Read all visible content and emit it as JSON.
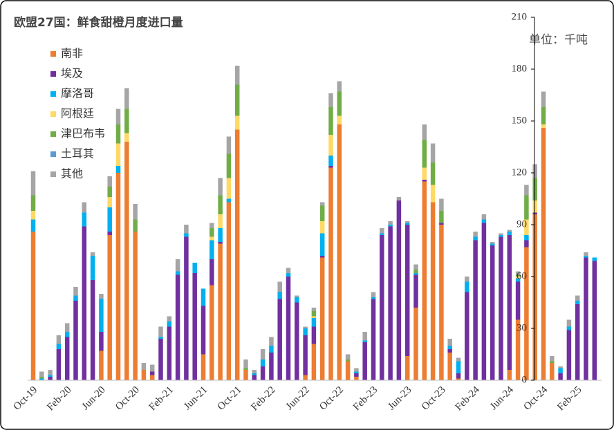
{
  "chart_data": {
    "type": "stacked_bar",
    "title": "欧盟27国：鲜食甜橙月度进口量",
    "y_axis_label": "单位：千吨",
    "categories": [
      "Oct-19",
      null,
      null,
      null,
      "Feb-20",
      null,
      null,
      null,
      "Jun-20",
      null,
      null,
      null,
      "Oct-20",
      null,
      null,
      null,
      "Feb-21",
      null,
      null,
      null,
      "Jun-21",
      null,
      null,
      null,
      "Oct-21",
      null,
      null,
      null,
      "Feb-22",
      null,
      null,
      null,
      "Jun-22",
      null,
      null,
      null,
      "Oct-22",
      null,
      null,
      null,
      "Feb-23",
      null,
      null,
      null,
      "Jun-23",
      null,
      null,
      null,
      "Oct-23",
      null,
      null,
      null,
      "Feb-24",
      null,
      null,
      null,
      "Jun-24",
      null,
      null,
      null,
      "Oct-24",
      null,
      null,
      null,
      "Feb-25",
      null,
      null
    ],
    "ylim": [
      0,
      210
    ],
    "yticks": [
      0,
      30,
      60,
      90,
      120,
      150,
      180,
      210
    ],
    "legend": "top-left",
    "series": [
      {
        "name": "南非",
        "color": "#ed7d31",
        "values": [
          86,
          0,
          0,
          0,
          0,
          0,
          0,
          0,
          17,
          84,
          120,
          138,
          86,
          6,
          3,
          0,
          0,
          0,
          0,
          0,
          15,
          55,
          79,
          103,
          145,
          6,
          0,
          0,
          0,
          0,
          0,
          0,
          3,
          21,
          71,
          123,
          148,
          11,
          2,
          0,
          0,
          0,
          0,
          0,
          14,
          42,
          115,
          103,
          90,
          16,
          1,
          0,
          0,
          0,
          0,
          0,
          6,
          35,
          77,
          96,
          146,
          10,
          0,
          0,
          0,
          0,
          0
        ]
      },
      {
        "name": "埃及",
        "color": "#7030a0",
        "values": [
          0,
          0,
          2,
          18,
          25,
          46,
          89,
          58,
          11,
          2,
          0,
          0,
          0,
          0,
          2,
          24,
          31,
          61,
          83,
          62,
          28,
          15,
          1,
          0,
          0,
          0,
          3,
          8,
          16,
          47,
          60,
          45,
          23,
          10,
          1,
          1,
          0,
          0,
          2,
          22,
          47,
          84,
          89,
          104,
          76,
          19,
          1,
          0,
          1,
          2,
          3,
          51,
          81,
          91,
          78,
          83,
          78,
          22,
          4,
          1,
          0,
          0,
          4,
          29,
          44,
          71,
          69
        ]
      },
      {
        "name": "摩洛哥",
        "color": "#00b0f0",
        "values": [
          7,
          1,
          1,
          3,
          3,
          3,
          8,
          14,
          19,
          14,
          4,
          0,
          0,
          0,
          0,
          1,
          3,
          2,
          2,
          6,
          10,
          11,
          8,
          2,
          0,
          0,
          1,
          4,
          4,
          4,
          2,
          3,
          4,
          5,
          13,
          6,
          0,
          0,
          1,
          1,
          1,
          1,
          1,
          0,
          1,
          1,
          0,
          0,
          0,
          2,
          7,
          6,
          2,
          2,
          1,
          1,
          2,
          2,
          3,
          0,
          0,
          0,
          3,
          2,
          2,
          1,
          2
        ]
      },
      {
        "name": "阿根廷",
        "color": "#ffd966",
        "values": [
          5,
          0,
          0,
          0,
          0,
          0,
          0,
          0,
          0,
          6,
          13,
          5,
          0,
          0,
          0,
          0,
          0,
          0,
          0,
          0,
          0,
          2,
          8,
          12,
          8,
          0,
          0,
          0,
          0,
          0,
          0,
          0,
          0,
          1,
          7,
          12,
          5,
          0,
          0,
          0,
          0,
          0,
          0,
          0,
          0,
          0,
          7,
          10,
          0,
          0,
          0,
          0,
          0,
          0,
          0,
          0,
          0,
          1,
          9,
          7,
          2,
          0,
          0,
          0,
          0,
          0,
          0
        ]
      },
      {
        "name": "津巴布韦",
        "color": "#70ad47",
        "values": [
          9,
          1,
          0,
          0,
          0,
          0,
          0,
          0,
          0,
          6,
          11,
          14,
          7,
          0,
          0,
          0,
          0,
          0,
          0,
          0,
          0,
          5,
          11,
          14,
          18,
          1,
          0,
          0,
          0,
          0,
          0,
          0,
          0,
          3,
          9,
          16,
          14,
          1,
          0,
          0,
          0,
          0,
          0,
          0,
          0,
          2,
          16,
          13,
          7,
          0,
          0,
          0,
          0,
          0,
          0,
          0,
          0,
          1,
          14,
          13,
          10,
          1,
          0,
          0,
          0,
          0,
          0
        ]
      },
      {
        "name": "土耳其",
        "color": "#5b9bd5",
        "values": [
          0,
          0,
          0,
          0,
          0,
          0,
          0,
          0,
          0,
          0,
          0,
          0,
          0,
          0,
          0,
          0,
          0,
          0,
          0,
          0,
          0,
          0,
          0,
          0,
          0,
          0,
          0,
          0,
          0,
          0,
          0,
          0,
          0,
          0,
          0,
          0,
          0,
          0,
          0,
          0,
          0,
          0,
          0,
          0,
          0,
          0,
          0,
          0,
          0,
          0,
          0,
          0,
          0,
          0,
          0,
          0,
          0,
          0,
          0,
          0,
          0,
          0,
          0,
          0,
          0,
          0,
          0
        ]
      },
      {
        "name": "其他",
        "color": "#a5a5a5",
        "values": [
          14,
          3,
          3,
          5,
          5,
          5,
          6,
          2,
          3,
          6,
          9,
          12,
          9,
          4,
          4,
          6,
          3,
          7,
          5,
          0,
          0,
          3,
          10,
          10,
          11,
          5,
          2,
          6,
          5,
          6,
          3,
          1,
          1,
          2,
          2,
          8,
          6,
          3,
          2,
          5,
          3,
          3,
          2,
          2,
          1,
          3,
          9,
          11,
          7,
          4,
          2,
          3,
          3,
          3,
          1,
          1,
          1,
          2,
          6,
          8,
          9,
          3,
          1,
          4,
          3,
          2,
          0
        ]
      }
    ]
  }
}
